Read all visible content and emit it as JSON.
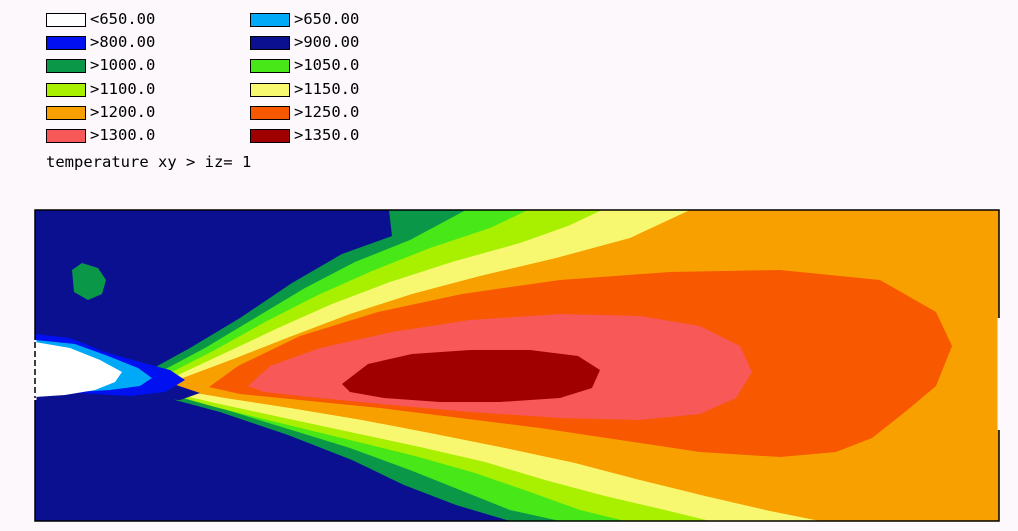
{
  "legend": {
    "items": [
      {
        "label": "<650.00",
        "color": "#ffffff"
      },
      {
        "label": ">650.00",
        "color": "#00a8f8"
      },
      {
        "label": ">800.00",
        "color": "#0010f0"
      },
      {
        "label": ">900.00",
        "color": "#0a1090"
      },
      {
        "label": ">1000.0",
        "color": "#0a9848"
      },
      {
        "label": ">1050.0",
        "color": "#48e818"
      },
      {
        "label": ">1100.0",
        "color": "#a8f000"
      },
      {
        "label": ">1150.0",
        "color": "#f8f870"
      },
      {
        "label": ">1200.0",
        "color": "#f8a000"
      },
      {
        "label": ">1250.0",
        "color": "#f85800"
      },
      {
        "label": ">1300.0",
        "color": "#f85858"
      },
      {
        "label": ">1350.0",
        "color": "#a00000"
      }
    ]
  },
  "plot": {
    "title": "temperature xy > iz= 1"
  },
  "chart_data": {
    "type": "heatmap",
    "title": "temperature xy > iz= 1",
    "levels": [
      {
        "label": "<650.00",
        "color": "#ffffff"
      },
      {
        "label": ">650.00",
        "color": "#00a8f8"
      },
      {
        "label": ">800.00",
        "color": "#0010f0"
      },
      {
        "label": ">900.00",
        "color": "#0a1090"
      },
      {
        "label": ">1000.0",
        "color": "#0a9848"
      },
      {
        "label": ">1050.0",
        "color": "#48e818"
      },
      {
        "label": ">1100.0",
        "color": "#a8f000"
      },
      {
        "label": ">1150.0",
        "color": "#f8f870"
      },
      {
        "label": ">1200.0",
        "color": "#f8a000"
      },
      {
        "label": ">1250.0",
        "color": "#f85800"
      },
      {
        "label": ">1300.0",
        "color": "#f85858"
      },
      {
        "label": ">1350.0",
        "color": "#a00000"
      }
    ],
    "legend_position": "top-left",
    "grid": false
  }
}
